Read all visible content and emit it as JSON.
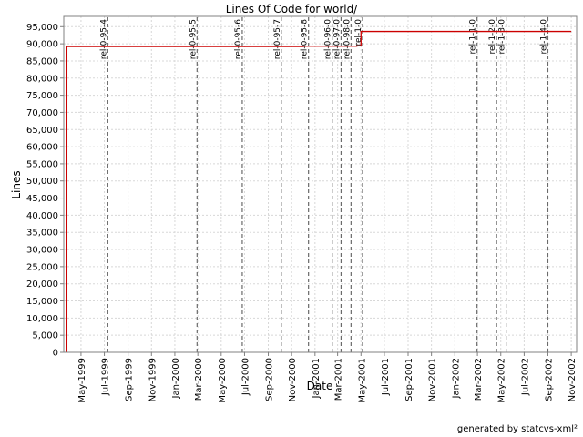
{
  "chart_data": {
    "type": "line",
    "title": "Lines Of Code for world/",
    "xlabel": "Date",
    "ylabel": "Lines",
    "ylim": [
      0,
      98000
    ],
    "xlim": [
      "1999-03-17",
      "2002-11-15"
    ],
    "y_ticks": [
      0,
      5000,
      10000,
      15000,
      20000,
      25000,
      30000,
      35000,
      40000,
      45000,
      50000,
      55000,
      60000,
      65000,
      70000,
      75000,
      80000,
      85000,
      90000,
      95000
    ],
    "y_tick_labels": [
      "0",
      "5,000",
      "10,000",
      "15,000",
      "20,000",
      "25,000",
      "30,000",
      "35,000",
      "40,000",
      "45,000",
      "50,000",
      "55,000",
      "60,000",
      "65,000",
      "70,000",
      "75,000",
      "80,000",
      "85,000",
      "90,000",
      "95,000"
    ],
    "x_ticks": [
      "1999-05-01",
      "1999-07-01",
      "1999-09-01",
      "1999-11-01",
      "2000-01-01",
      "2000-03-01",
      "2000-05-01",
      "2000-07-01",
      "2000-09-01",
      "2000-11-01",
      "2001-01-01",
      "2001-03-01",
      "2001-05-01",
      "2001-07-01",
      "2001-09-01",
      "2001-11-01",
      "2002-01-01",
      "2002-03-01",
      "2002-05-01",
      "2002-07-01",
      "2002-09-01",
      "2002-11-01"
    ],
    "x_tick_labels": [
      "May-1999",
      "Jul-1999",
      "Sep-1999",
      "Nov-1999",
      "Jan-2000",
      "Mar-2000",
      "May-2000",
      "Jul-2000",
      "Sep-2000",
      "Nov-2000",
      "Jan-2001",
      "Mar-2001",
      "May-2001",
      "Jul-2001",
      "Sep-2001",
      "Nov-2001",
      "Jan-2002",
      "Mar-2002",
      "May-2002",
      "Jul-2002",
      "Sep-2002",
      "Nov-2002"
    ],
    "grid": true,
    "series": [
      {
        "color": "#cc0000",
        "points": [
          {
            "x": "1999-03-25",
            "y": 0
          },
          {
            "x": "1999-03-25",
            "y": 89200
          },
          {
            "x": "2000-12-01",
            "y": 89300
          },
          {
            "x": "2001-04-20",
            "y": 89400
          },
          {
            "x": "2001-05-01",
            "y": 89500
          },
          {
            "x": "2001-05-01",
            "y": 93600
          },
          {
            "x": "2002-11-01",
            "y": 93600
          }
        ]
      }
    ],
    "markers": [
      {
        "label": "rel-0-95-4",
        "x": "1999-07-10"
      },
      {
        "label": "rel-0-95-5",
        "x": "2000-02-28"
      },
      {
        "label": "rel-0-95-6",
        "x": "2000-06-25"
      },
      {
        "label": "rel-0-95-7",
        "x": "2000-10-05"
      },
      {
        "label": "rel-0-95-8",
        "x": "2000-12-15"
      },
      {
        "label": "rel-0-96-0",
        "x": "2001-02-15"
      },
      {
        "label": "rel-0-97-0",
        "x": "2001-03-10"
      },
      {
        "label": "rel-0-98-0",
        "x": "2001-04-05"
      },
      {
        "label": "rel-1-0",
        "x": "2001-05-05"
      },
      {
        "label": "rel-1-1-0",
        "x": "2002-02-28"
      },
      {
        "label": "rel-1-2-0",
        "x": "2002-04-20"
      },
      {
        "label": "rel-1-3-0",
        "x": "2002-05-15"
      },
      {
        "label": "rel-1-4-0",
        "x": "2002-09-01"
      }
    ]
  },
  "footer": {
    "credit": "generated by statcvs-xml²"
  },
  "colors": {
    "line": "#cc0000",
    "grid": "#d8d8d8",
    "marker": "#6a6a6a",
    "axis": "#808080"
  }
}
